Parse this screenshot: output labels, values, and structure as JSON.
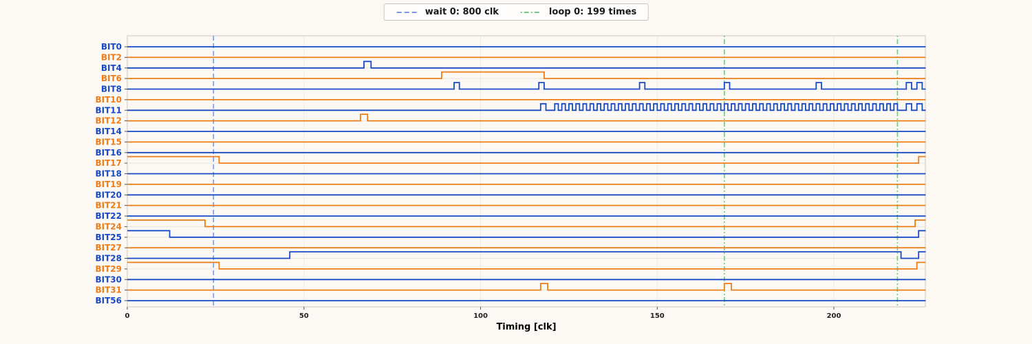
{
  "legend": {
    "items": [
      {
        "id": "wait",
        "label": "wait 0: 800 clk",
        "color": "#7b97e0",
        "style": "dashed"
      },
      {
        "id": "loop",
        "label": "loop 0: 199 times",
        "color": "#74c982",
        "style": "dashdot"
      }
    ]
  },
  "chart_data": {
    "type": "line",
    "subtype": "digital-timing-waveform",
    "title": "",
    "xlabel": "Timing [clk]",
    "xlim": [
      0,
      226
    ],
    "xticks": [
      0,
      50,
      100,
      150,
      200
    ],
    "grid": true,
    "legend_position": "top-center",
    "colors": {
      "blue": "#1849c6",
      "orange": "#ee7d17"
    },
    "events": [
      {
        "label": "wait 0: 800 clk",
        "x": 24.4,
        "color": "#7b97e0",
        "style": "dashed"
      },
      {
        "label": "loop 0: 199 times",
        "x": 169,
        "color": "#74c982",
        "style": "dashdot"
      },
      {
        "label": "loop 0: 199 times",
        "x": 218,
        "color": "#74c982",
        "style": "dashdot"
      }
    ],
    "signals": [
      {
        "name": "BIT0",
        "color": "blue",
        "points": [
          [
            0,
            0
          ]
        ]
      },
      {
        "name": "BIT2",
        "color": "orange",
        "points": [
          [
            0,
            0
          ]
        ]
      },
      {
        "name": "BIT4",
        "color": "blue",
        "points": [
          [
            0,
            0
          ],
          [
            67,
            1
          ],
          [
            69,
            0
          ]
        ]
      },
      {
        "name": "BIT6",
        "color": "orange",
        "points": [
          [
            0,
            0
          ],
          [
            89,
            1
          ],
          [
            118,
            0
          ]
        ]
      },
      {
        "name": "BIT8",
        "color": "blue",
        "points": [
          [
            0,
            0
          ],
          [
            92.5,
            1
          ],
          [
            94,
            0
          ],
          [
            116.5,
            1
          ],
          [
            118,
            0
          ],
          [
            145,
            1
          ],
          [
            146.5,
            0
          ],
          [
            169,
            1
          ],
          [
            170.5,
            0
          ],
          [
            195,
            1
          ],
          [
            196.5,
            0
          ],
          [
            220.5,
            1
          ],
          [
            222,
            0
          ],
          [
            223.5,
            1
          ],
          [
            225,
            0
          ]
        ]
      },
      {
        "name": "BIT10",
        "color": "orange",
        "points": [
          [
            0,
            0
          ]
        ]
      },
      {
        "name": "BIT11",
        "color": "blue",
        "points": [
          [
            0,
            0
          ],
          [
            117,
            1
          ],
          [
            118.5,
            0
          ],
          [
            220.5,
            1
          ],
          [
            222,
            0
          ],
          [
            223.5,
            1
          ],
          [
            225,
            0
          ]
        ],
        "bursts": [
          {
            "start": 121,
            "end": 219,
            "period": 2
          }
        ]
      },
      {
        "name": "BIT12",
        "color": "orange",
        "points": [
          [
            0,
            0
          ],
          [
            66,
            1
          ],
          [
            68,
            0
          ]
        ]
      },
      {
        "name": "BIT14",
        "color": "blue",
        "points": [
          [
            0,
            0
          ]
        ]
      },
      {
        "name": "BIT15",
        "color": "orange",
        "points": [
          [
            0,
            0
          ]
        ]
      },
      {
        "name": "BIT16",
        "color": "blue",
        "points": [
          [
            0,
            0
          ]
        ]
      },
      {
        "name": "BIT17",
        "color": "orange",
        "points": [
          [
            0,
            1
          ],
          [
            26,
            0
          ],
          [
            224,
            1
          ]
        ]
      },
      {
        "name": "BIT18",
        "color": "blue",
        "points": [
          [
            0,
            0
          ]
        ]
      },
      {
        "name": "BIT19",
        "color": "orange",
        "points": [
          [
            0,
            0
          ]
        ]
      },
      {
        "name": "BIT20",
        "color": "blue",
        "points": [
          [
            0,
            0
          ]
        ]
      },
      {
        "name": "BIT21",
        "color": "orange",
        "points": [
          [
            0,
            0
          ]
        ]
      },
      {
        "name": "BIT22",
        "color": "blue",
        "points": [
          [
            0,
            0
          ]
        ]
      },
      {
        "name": "BIT24",
        "color": "orange",
        "points": [
          [
            0,
            1
          ],
          [
            22,
            0
          ],
          [
            223,
            1
          ]
        ]
      },
      {
        "name": "BIT25",
        "color": "blue",
        "points": [
          [
            0,
            1
          ],
          [
            12,
            0
          ],
          [
            224,
            1
          ]
        ]
      },
      {
        "name": "BIT27",
        "color": "orange",
        "points": [
          [
            0,
            0
          ]
        ]
      },
      {
        "name": "BIT28",
        "color": "blue",
        "points": [
          [
            0,
            0
          ],
          [
            46,
            1
          ],
          [
            219,
            0
          ],
          [
            224,
            1
          ]
        ]
      },
      {
        "name": "BIT29",
        "color": "orange",
        "points": [
          [
            0,
            1
          ],
          [
            26,
            0
          ],
          [
            223.5,
            1
          ]
        ]
      },
      {
        "name": "BIT30",
        "color": "blue",
        "points": [
          [
            0,
            0
          ]
        ]
      },
      {
        "name": "BIT31",
        "color": "orange",
        "points": [
          [
            0,
            0
          ],
          [
            117,
            1
          ],
          [
            119,
            0
          ],
          [
            169,
            1
          ],
          [
            171,
            0
          ]
        ]
      },
      {
        "name": "BIT56",
        "color": "blue",
        "points": [
          [
            0,
            0
          ]
        ]
      }
    ]
  }
}
